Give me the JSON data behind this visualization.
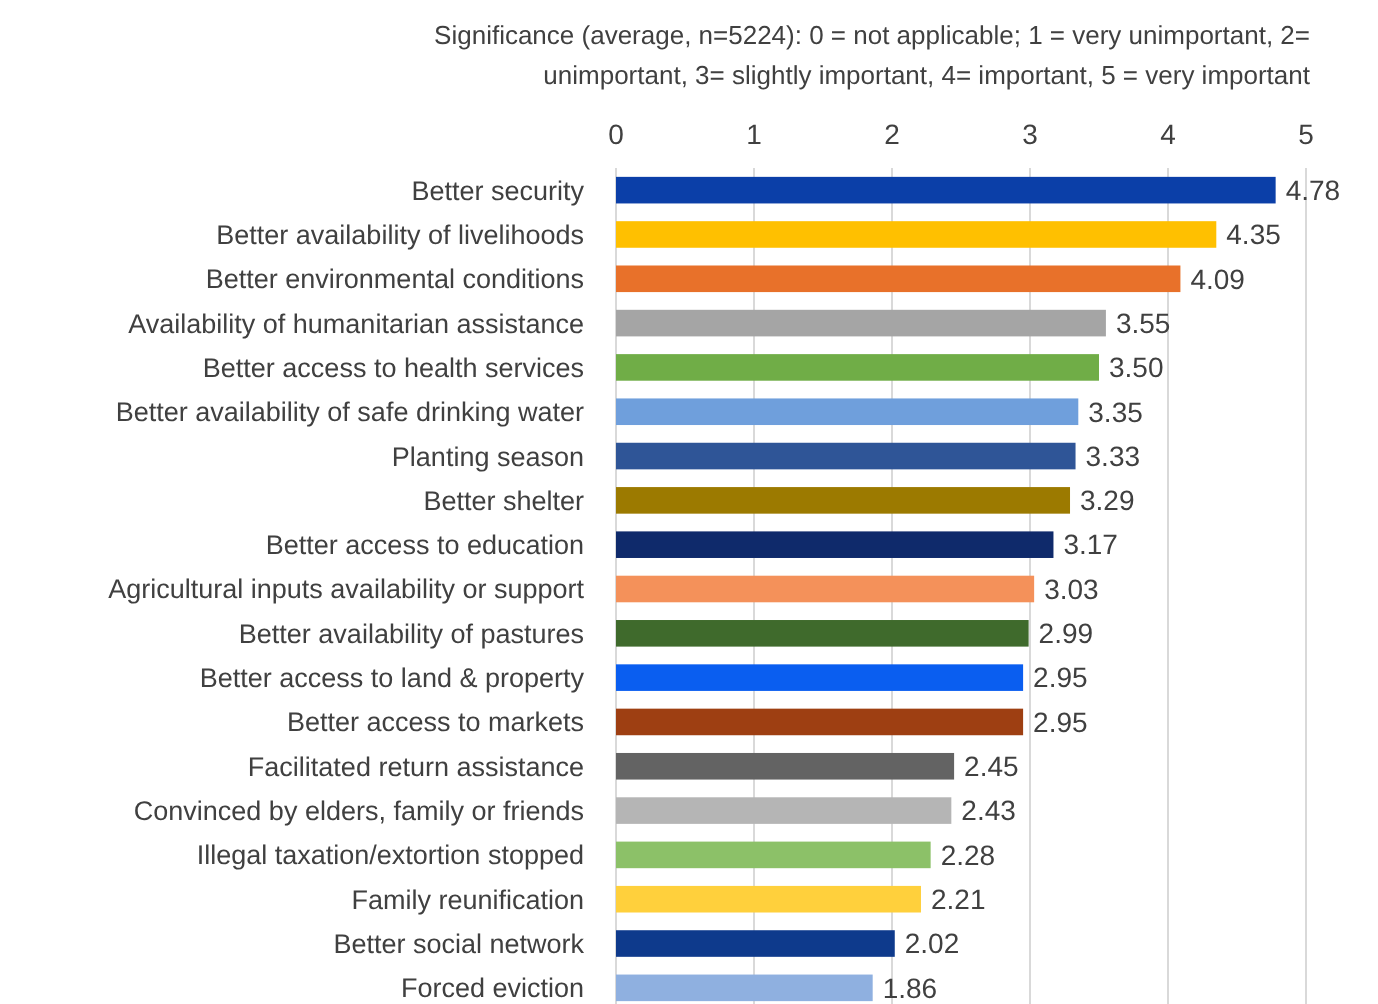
{
  "chart_data": {
    "type": "bar",
    "orientation": "horizontal",
    "xlabel": "Significance (average, n=5224): 0 = not applicable; 1 = very unimportant, 2= unimportant, 3= slightly important, 4= important, 5 = very important",
    "categories": [
      "Better security",
      "Better availability of livelihoods",
      "Better environmental conditions",
      "Availability of humanitarian assistance",
      "Better access to health services",
      "Better availability of safe drinking water",
      "Planting season",
      "Better shelter",
      "Better access to education",
      "Agricultural inputs availability or support",
      "Better availability of pastures",
      "Better access to land & property",
      "Better access to markets",
      "Facilitated return assistance",
      "Convinced by elders, family or friends",
      "Illegal taxation/extortion stopped",
      "Family reunification",
      "Better social network",
      "Forced eviction"
    ],
    "values": [
      4.78,
      4.35,
      4.09,
      3.55,
      3.5,
      3.35,
      3.33,
      3.29,
      3.17,
      3.03,
      2.99,
      2.95,
      2.95,
      2.45,
      2.43,
      2.28,
      2.21,
      2.02,
      1.86
    ],
    "value_labels": [
      "4.78",
      "4.35",
      "4.09",
      "3.55",
      "3.50",
      "3.35",
      "3.33",
      "3.29",
      "3.17",
      "3.03",
      "2.99",
      "2.95",
      "2.95",
      "2.45",
      "2.43",
      "2.28",
      "2.21",
      "2.02",
      "1.86"
    ],
    "colors": [
      "#0b3fa8",
      "#ffc000",
      "#e8712a",
      "#a5a5a5",
      "#70ad47",
      "#6f9fdc",
      "#2f5597",
      "#9c7a00",
      "#0f2a6b",
      "#f4915a",
      "#3f6a2c",
      "#0a5ef0",
      "#9e3f12",
      "#636363",
      "#b5b5b5",
      "#8cc168",
      "#ffd03c",
      "#0e3a8c",
      "#8fb0e0"
    ],
    "xlim": [
      0,
      5
    ],
    "xticks": [
      0,
      1,
      2,
      3,
      4,
      5
    ],
    "grid": "x"
  }
}
